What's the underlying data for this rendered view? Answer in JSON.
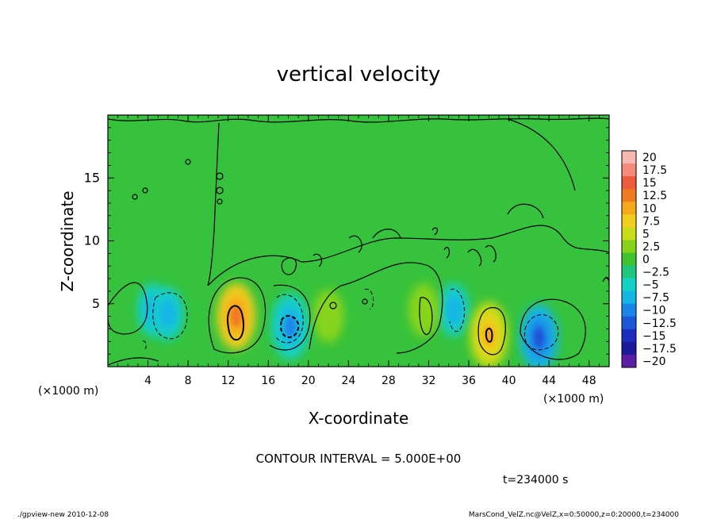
{
  "chart_data": {
    "type": "heatmap",
    "title": "vertical velocity",
    "xlabel": "X-coordinate",
    "ylabel": "Z-coordinate",
    "x_unit_label": "(×1000 m)",
    "y_unit_label": "(×1000 m)",
    "xlim": [
      0,
      50
    ],
    "ylim": [
      0,
      20
    ],
    "x_ticks": [
      4,
      8,
      12,
      16,
      20,
      24,
      28,
      32,
      36,
      40,
      44,
      48
    ],
    "y_ticks": [
      5,
      10,
      15
    ],
    "contour_interval_text": "CONTOUR INTERVAL = 5.000E+00",
    "time_text": "t=234000 s",
    "footer_left": "./gpview-new  2010-12-08",
    "footer_right": "MarsCond_VelZ.nc@VelZ,x=0:50000,z=0:20000,t=234000",
    "colorbar": {
      "labels": [
        "20",
        "17.5",
        "15",
        "12.5",
        "10",
        "7.5",
        "5",
        "2.5",
        "0",
        "-2.5",
        "-5",
        "-7.5",
        "-10",
        "-12.5",
        "-15",
        "-17.5",
        "-20"
      ],
      "colors": [
        "#f7b8b0",
        "#f48a7a",
        "#ee5a3c",
        "#f07a20",
        "#f5a81a",
        "#f2cf1e",
        "#c8dc18",
        "#86d41a",
        "#3fc42f",
        "#1ec67e",
        "#12d2c6",
        "#14b6e6",
        "#1b86ea",
        "#1b57d6",
        "#1a2fbd",
        "#1a1a9b",
        "#5a1fa6"
      ]
    },
    "features": [
      {
        "x": 4.5,
        "z": 4.5,
        "value": -7.5
      },
      {
        "x": 6.0,
        "z": 4.2,
        "value": -7.5
      },
      {
        "x": 12.8,
        "z": 4.0,
        "value": 12.5
      },
      {
        "x": 18.2,
        "z": 3.2,
        "value": -10
      },
      {
        "x": 34.5,
        "z": 4.5,
        "value": -7.5
      },
      {
        "x": 38.0,
        "z": 2.5,
        "value": 10
      },
      {
        "x": 43.0,
        "z": 2.3,
        "value": -12.5
      },
      {
        "x": 22.0,
        "z": 4.0,
        "value": 2.5
      },
      {
        "x": 31.5,
        "z": 4.5,
        "value": 2.5
      }
    ]
  }
}
